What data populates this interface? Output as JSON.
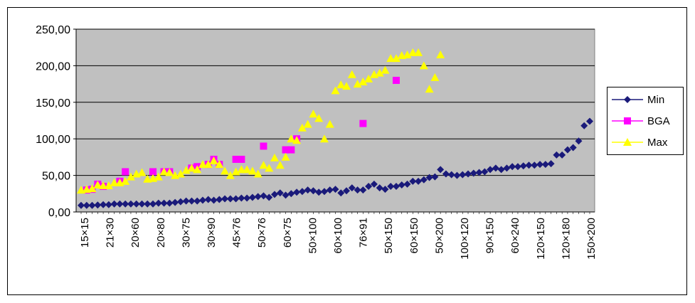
{
  "chart_data": {
    "type": "scatter",
    "title": "",
    "xlabel": "",
    "ylabel": "",
    "ylim": [
      0,
      250
    ],
    "y_ticks": [
      "0,00",
      "50,00",
      "100,00",
      "150,00",
      "200,00",
      "250,00"
    ],
    "y_tick_values": [
      0,
      50,
      100,
      150,
      200,
      250
    ],
    "x_tick_labels": [
      "15×15",
      "21×30",
      "20×60",
      "20×80",
      "30×75",
      "30×90",
      "45×76",
      "50×76",
      "60×75",
      "50×100",
      "60×100",
      "76×91",
      "50×150",
      "60×150",
      "50×200",
      "100×120",
      "90×150",
      "60×240",
      "120×150",
      "120×180",
      "150×200"
    ],
    "grid": "horizontal",
    "legend_position": "right",
    "series": [
      {
        "name": "Min",
        "color": "#1a1a7a",
        "marker": "diamond",
        "line": "#1a1a7a",
        "points": [
          [
            1,
            9
          ],
          [
            2,
            9
          ],
          [
            3,
            9
          ],
          [
            4,
            9.5
          ],
          [
            5,
            10
          ],
          [
            6,
            10
          ],
          [
            7,
            11
          ],
          [
            8,
            11
          ],
          [
            9,
            11
          ],
          [
            10,
            11
          ],
          [
            11,
            11
          ],
          [
            12,
            11
          ],
          [
            13,
            11
          ],
          [
            14,
            11
          ],
          [
            15,
            12
          ],
          [
            16,
            12
          ],
          [
            17,
            12
          ],
          [
            18,
            13
          ],
          [
            19,
            14
          ],
          [
            20,
            15
          ],
          [
            21,
            15
          ],
          [
            22,
            15
          ],
          [
            23,
            16
          ],
          [
            24,
            17
          ],
          [
            25,
            16
          ],
          [
            26,
            17
          ],
          [
            27,
            18
          ],
          [
            28,
            18
          ],
          [
            29,
            18
          ],
          [
            30,
            19
          ],
          [
            31,
            19
          ],
          [
            32,
            20
          ],
          [
            33,
            21
          ],
          [
            34,
            22
          ],
          [
            35,
            20
          ],
          [
            36,
            24
          ],
          [
            37,
            26
          ],
          [
            38,
            23
          ],
          [
            39,
            25
          ],
          [
            40,
            27
          ],
          [
            41,
            28
          ],
          [
            42,
            30
          ],
          [
            43,
            29
          ],
          [
            44,
            27
          ],
          [
            45,
            28
          ],
          [
            46,
            30
          ],
          [
            47,
            31
          ],
          [
            48,
            26
          ],
          [
            49,
            29
          ],
          [
            50,
            33
          ],
          [
            51,
            30
          ],
          [
            52,
            30
          ],
          [
            53,
            35
          ],
          [
            54,
            38
          ],
          [
            55,
            33
          ],
          [
            56,
            31
          ],
          [
            57,
            35
          ],
          [
            58,
            35
          ],
          [
            59,
            37
          ],
          [
            60,
            38
          ],
          [
            61,
            42
          ],
          [
            62,
            42
          ],
          [
            63,
            44
          ],
          [
            64,
            47
          ],
          [
            65,
            48
          ],
          [
            66,
            58
          ],
          [
            67,
            52
          ],
          [
            68,
            51
          ],
          [
            69,
            50
          ],
          [
            70,
            51
          ],
          [
            71,
            52
          ],
          [
            72,
            53
          ],
          [
            73,
            54
          ],
          [
            74,
            55
          ],
          [
            75,
            58
          ],
          [
            76,
            60
          ],
          [
            77,
            58
          ],
          [
            78,
            60
          ],
          [
            79,
            62
          ],
          [
            80,
            62
          ],
          [
            81,
            63
          ],
          [
            82,
            64
          ],
          [
            83,
            64
          ],
          [
            84,
            65
          ],
          [
            85,
            65
          ],
          [
            86,
            66
          ],
          [
            87,
            78
          ],
          [
            88,
            78
          ],
          [
            89,
            85
          ],
          [
            90,
            88
          ],
          [
            91,
            97
          ],
          [
            92,
            118
          ],
          [
            93,
            124
          ]
        ]
      },
      {
        "name": "BGA",
        "color": "#ff00ff",
        "marker": "square",
        "line": "#ff00ff",
        "points": [
          [
            2,
            30
          ],
          [
            3,
            31
          ],
          [
            4,
            38
          ],
          [
            5,
            35
          ],
          [
            8,
            42
          ],
          [
            9,
            55
          ],
          [
            14,
            55
          ],
          [
            16,
            55
          ],
          [
            17,
            55
          ],
          [
            21,
            60
          ],
          [
            22,
            62
          ],
          [
            24,
            65
          ],
          [
            25,
            72
          ],
          [
            26,
            65
          ],
          [
            29,
            72
          ],
          [
            30,
            72
          ],
          [
            34,
            90
          ],
          [
            38,
            85
          ],
          [
            39,
            85
          ],
          [
            40,
            100
          ],
          [
            52,
            121
          ],
          [
            58,
            180
          ]
        ]
      },
      {
        "name": "Max",
        "color": "#ffff00",
        "marker": "triangle",
        "line": "#ffff00",
        "points": [
          [
            1,
            30
          ],
          [
            2,
            31
          ],
          [
            3,
            32
          ],
          [
            4,
            37
          ],
          [
            5,
            36
          ],
          [
            6,
            36
          ],
          [
            7,
            40
          ],
          [
            8,
            40
          ],
          [
            9,
            42
          ],
          [
            10,
            48
          ],
          [
            11,
            52
          ],
          [
            12,
            54
          ],
          [
            13,
            45
          ],
          [
            14,
            46
          ],
          [
            15,
            48
          ],
          [
            16,
            55
          ],
          [
            17,
            54
          ],
          [
            18,
            50
          ],
          [
            19,
            52
          ],
          [
            20,
            57
          ],
          [
            21,
            60
          ],
          [
            22,
            58
          ],
          [
            23,
            65
          ],
          [
            24,
            65
          ],
          [
            25,
            70
          ],
          [
            26,
            65
          ],
          [
            27,
            56
          ],
          [
            28,
            50
          ],
          [
            29,
            55
          ],
          [
            30,
            58
          ],
          [
            31,
            58
          ],
          [
            32,
            56
          ],
          [
            33,
            52
          ],
          [
            34,
            64
          ],
          [
            35,
            60
          ],
          [
            36,
            74
          ],
          [
            37,
            64
          ],
          [
            38,
            75
          ],
          [
            39,
            100
          ],
          [
            40,
            98
          ],
          [
            41,
            115
          ],
          [
            42,
            120
          ],
          [
            43,
            134
          ],
          [
            44,
            128
          ],
          [
            45,
            100
          ],
          [
            46,
            120
          ],
          [
            47,
            166
          ],
          [
            48,
            174
          ],
          [
            49,
            172
          ],
          [
            50,
            188
          ],
          [
            51,
            175
          ],
          [
            52,
            178
          ],
          [
            53,
            182
          ],
          [
            54,
            188
          ],
          [
            55,
            190
          ],
          [
            56,
            194
          ],
          [
            57,
            210
          ],
          [
            58,
            210
          ],
          [
            59,
            214
          ],
          [
            60,
            215
          ],
          [
            61,
            218
          ],
          [
            62,
            218
          ],
          [
            63,
            200
          ],
          [
            64,
            168
          ],
          [
            65,
            184
          ],
          [
            66,
            215
          ]
        ]
      }
    ]
  }
}
